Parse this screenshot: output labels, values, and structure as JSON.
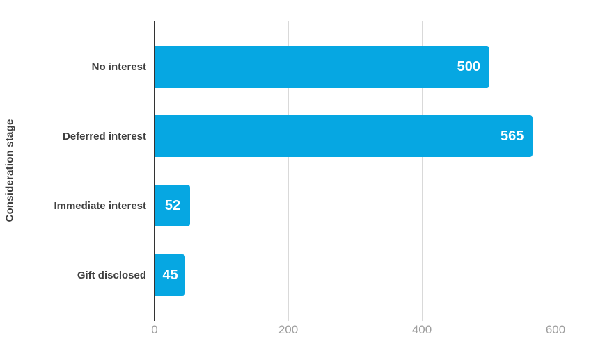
{
  "chart_data": {
    "type": "bar",
    "orientation": "horizontal",
    "title": "",
    "xlabel": "",
    "ylabel": "Consideration stage",
    "categories": [
      "No interest",
      "Deferred interest",
      "Immediate interest",
      "Gift disclosed"
    ],
    "values": [
      500,
      565,
      52,
      45
    ],
    "x_ticks": [
      0,
      200,
      400,
      600
    ],
    "xlim": [
      0,
      620
    ],
    "grid": true,
    "legend": false,
    "bar_color": "#06a7e2",
    "value_label_color": "#ffffff",
    "category_label_color": "#3f3f3f",
    "tick_label_color": "#9e9e9e",
    "gridline_color": "#d9d9d9",
    "axis_line_color": "#333333"
  }
}
